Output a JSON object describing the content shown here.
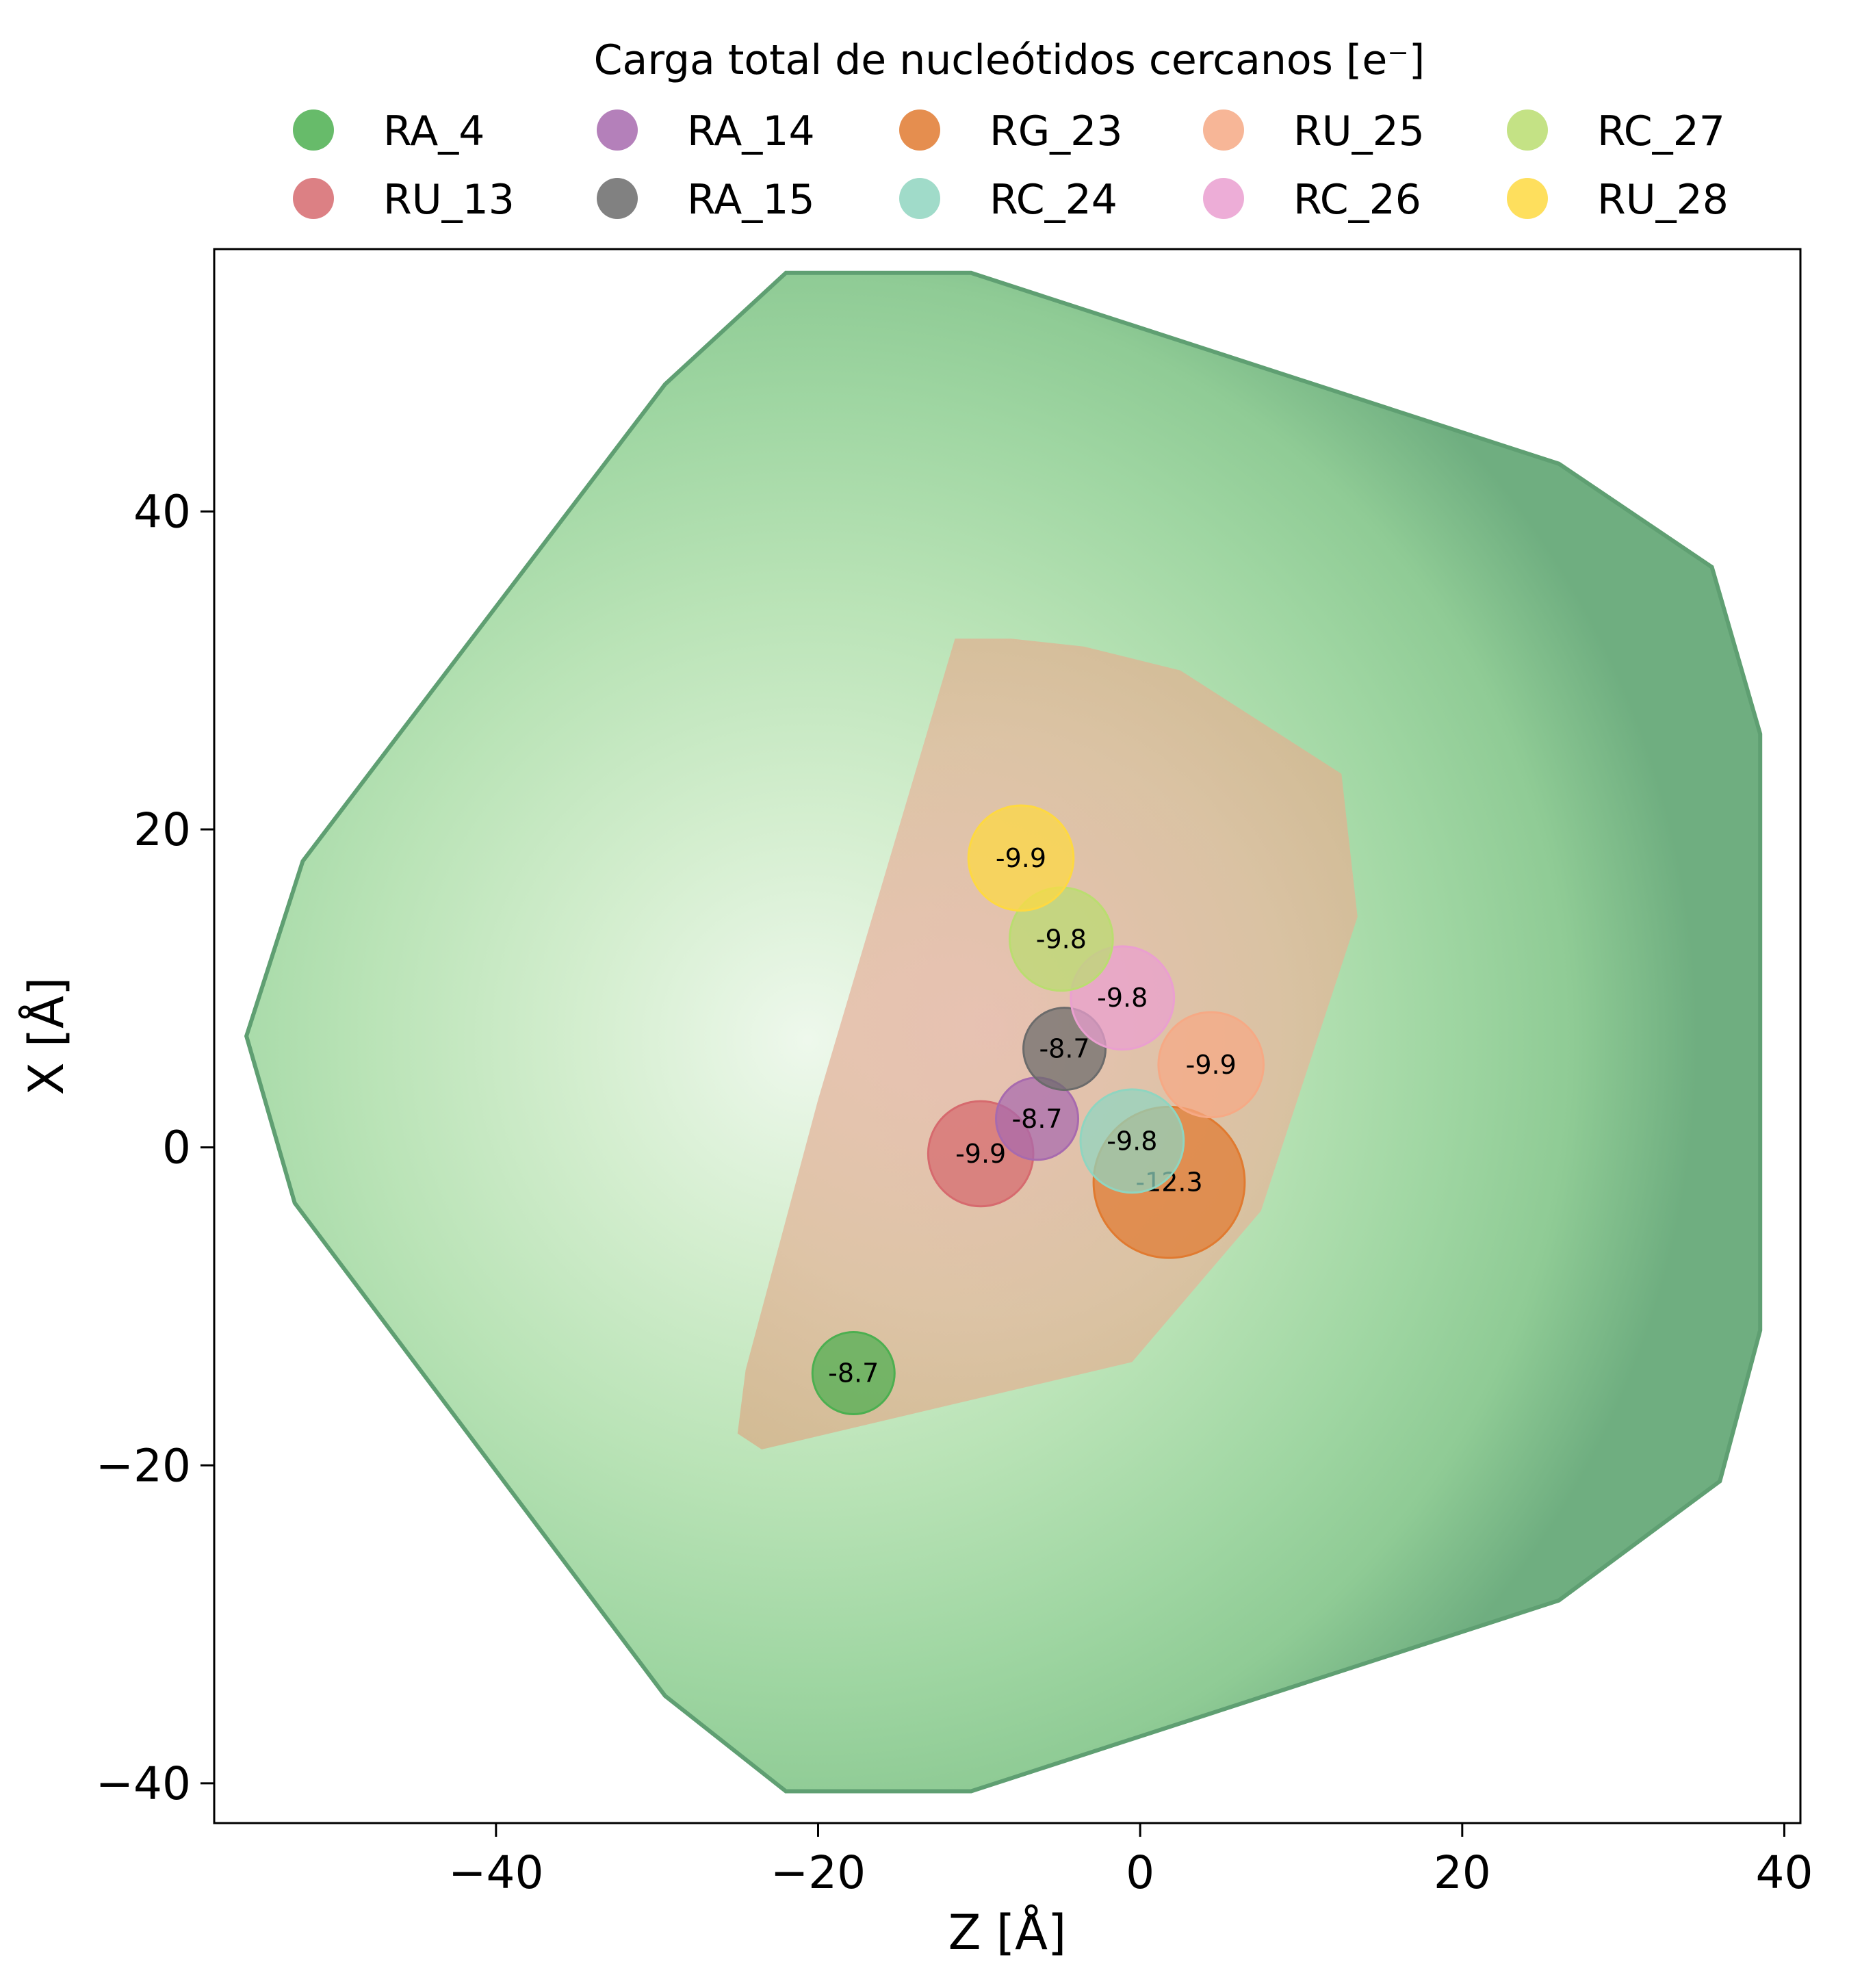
{
  "chart_data": {
    "type": "scatter",
    "title": "",
    "legend_title": "Carga total de nucleótidos cercanos [e⁻]",
    "legend_placement": "top-center",
    "xlabel": "Z [Å]",
    "ylabel": "X [Å]",
    "xlim": [
      -57.5,
      41
    ],
    "ylim": [
      -42.5,
      56.5
    ],
    "xticks": [
      -40,
      -20,
      0,
      20,
      40
    ],
    "xtick_labels": [
      "−40",
      "−20",
      "0",
      "20",
      "40"
    ],
    "yticks": [
      -40,
      -20,
      0,
      20,
      40
    ],
    "ytick_labels": [
      "−40",
      "−20",
      "0",
      "20",
      "40"
    ],
    "grid": false,
    "outer_region_vertices": [
      [
        -22,
        55
      ],
      [
        -29.5,
        48
      ],
      [
        -52,
        18
      ],
      [
        -55.5,
        7
      ],
      [
        -52.5,
        -3.5
      ],
      [
        -29.5,
        -34.5
      ],
      [
        -22,
        -40.5
      ],
      [
        -10.5,
        -40.5
      ],
      [
        26,
        -28.5
      ],
      [
        36,
        -21
      ],
      [
        38.5,
        -11.5
      ],
      [
        38.5,
        26
      ],
      [
        35.5,
        36.5
      ],
      [
        26,
        43
      ],
      [
        -10.5,
        55
      ]
    ],
    "inner_region_vertices": [
      [
        -11.5,
        32
      ],
      [
        -8,
        32
      ],
      [
        -3.5,
        31.5
      ],
      [
        2.5,
        30
      ],
      [
        12.5,
        23.5
      ],
      [
        13.5,
        14.5
      ],
      [
        7.5,
        -4
      ],
      [
        -0.5,
        -13.5
      ],
      [
        -23.5,
        -19
      ],
      [
        -25,
        -18
      ],
      [
        -24.5,
        -14
      ],
      [
        -20,
        3
      ]
    ],
    "series": [
      {
        "name": "RA_4",
        "color": "#4caf50",
        "x": -17.8,
        "y": -14.2,
        "label": "-8.7",
        "charge": -8.7
      },
      {
        "name": "RU_13",
        "color": "#d66a6e",
        "x": -9.9,
        "y": -0.4,
        "label": "-9.9",
        "charge": -9.9
      },
      {
        "name": "RA_14",
        "color": "#a76aae",
        "x": -6.4,
        "y": 1.8,
        "label": "-8.7",
        "charge": -8.7
      },
      {
        "name": "RA_15",
        "color": "#6b6b6b",
        "x": -4.7,
        "y": 6.2,
        "label": "-8.7",
        "charge": -8.7
      },
      {
        "name": "RG_23",
        "color": "#e07a30",
        "x": 1.8,
        "y": -2.2,
        "label": "-12.3",
        "charge": -12.3
      },
      {
        "name": "RC_24",
        "color": "#8fd5c0",
        "x": -0.5,
        "y": 0.4,
        "label": "-9.8",
        "charge": -9.8
      },
      {
        "name": "RU_25",
        "color": "#f6a985",
        "x": 4.4,
        "y": 5.2,
        "label": "-9.9",
        "charge": -9.9
      },
      {
        "name": "RC_26",
        "color": "#ea9fd0",
        "x": -1.1,
        "y": 9.4,
        "label": "-9.8",
        "charge": -9.8
      },
      {
        "name": "RC_27",
        "color": "#badd70",
        "x": -4.9,
        "y": 13.1,
        "label": "-9.8",
        "charge": -9.8
      },
      {
        "name": "RU_28",
        "color": "#fed941",
        "x": -7.4,
        "y": 18.2,
        "label": "-9.9",
        "charge": -9.9
      }
    ]
  },
  "colors": {
    "outer_edge": "#6fae80",
    "outer_mid": "#9fd7a6",
    "outer_center": "#e8f5e6",
    "inner_fill": "#d8b491",
    "axis": "#000000"
  }
}
